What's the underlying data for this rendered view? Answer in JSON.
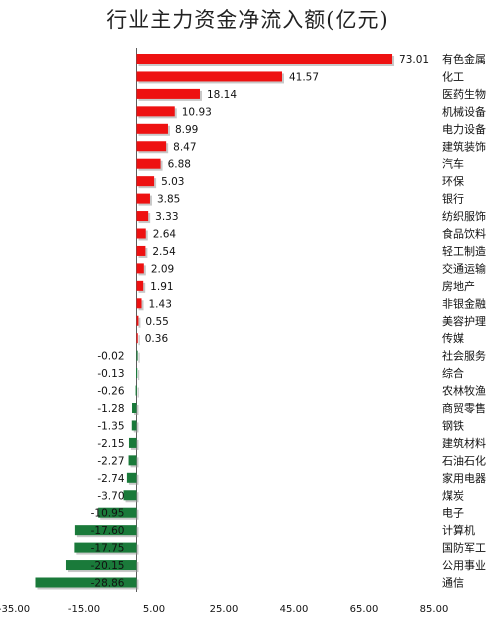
{
  "chart_data": {
    "type": "bar",
    "orientation": "horizontal",
    "title": "行业主力资金净流入额(亿元)",
    "categories": [
      "有色金属",
      "化工",
      "医药生物",
      "机械设备",
      "电力设备",
      "建筑装饰",
      "汽车",
      "环保",
      "银行",
      "纺织服饰",
      "食品饮料",
      "轻工制造",
      "交通运输",
      "房地产",
      "非银金融",
      "美容护理",
      "传媒",
      "社会服务",
      "综合",
      "农林牧渔",
      "商贸零售",
      "钢铁",
      "建筑材料",
      "石油石化",
      "家用电器",
      "煤炭",
      "电子",
      "计算机",
      "国防军工",
      "公用事业",
      "通信"
    ],
    "values": [
      73.01,
      41.57,
      18.14,
      10.93,
      8.99,
      8.47,
      6.88,
      5.03,
      3.85,
      3.33,
      2.64,
      2.54,
      2.09,
      1.91,
      1.43,
      0.55,
      0.36,
      -0.02,
      -0.13,
      -0.26,
      -1.28,
      -1.35,
      -2.15,
      -2.27,
      -2.74,
      -3.7,
      -10.95,
      -17.6,
      -17.75,
      -20.15,
      -28.86
    ],
    "value_labels": [
      "73.01",
      "41.57",
      "18.14",
      "10.93",
      "8.99",
      "8.47",
      "6.88",
      "5.03",
      "3.85",
      "3.33",
      "2.64",
      "2.54",
      "2.09",
      "1.91",
      "1.43",
      "0.55",
      "0.36",
      "-0.02",
      "-0.13",
      "-0.26",
      "-1.28",
      "-1.35",
      "-2.15",
      "-2.27",
      "-2.74",
      "-3.70",
      "-10.95",
      "-17.60",
      "-17.75",
      "-20.15",
      "-28.86"
    ],
    "xlim": [
      -35,
      85
    ],
    "x_ticks": [
      -35,
      -15,
      5,
      25,
      45,
      65,
      85
    ],
    "x_tick_labels": [
      "-35.00",
      "-15.00",
      "5.00",
      "25.00",
      "45.00",
      "65.00",
      "85.00"
    ],
    "grid": false,
    "legend": "none",
    "colors": {
      "positive": "#ee1111",
      "negative": "#1a7a3a",
      "shadow": "#9a9a9a"
    }
  }
}
